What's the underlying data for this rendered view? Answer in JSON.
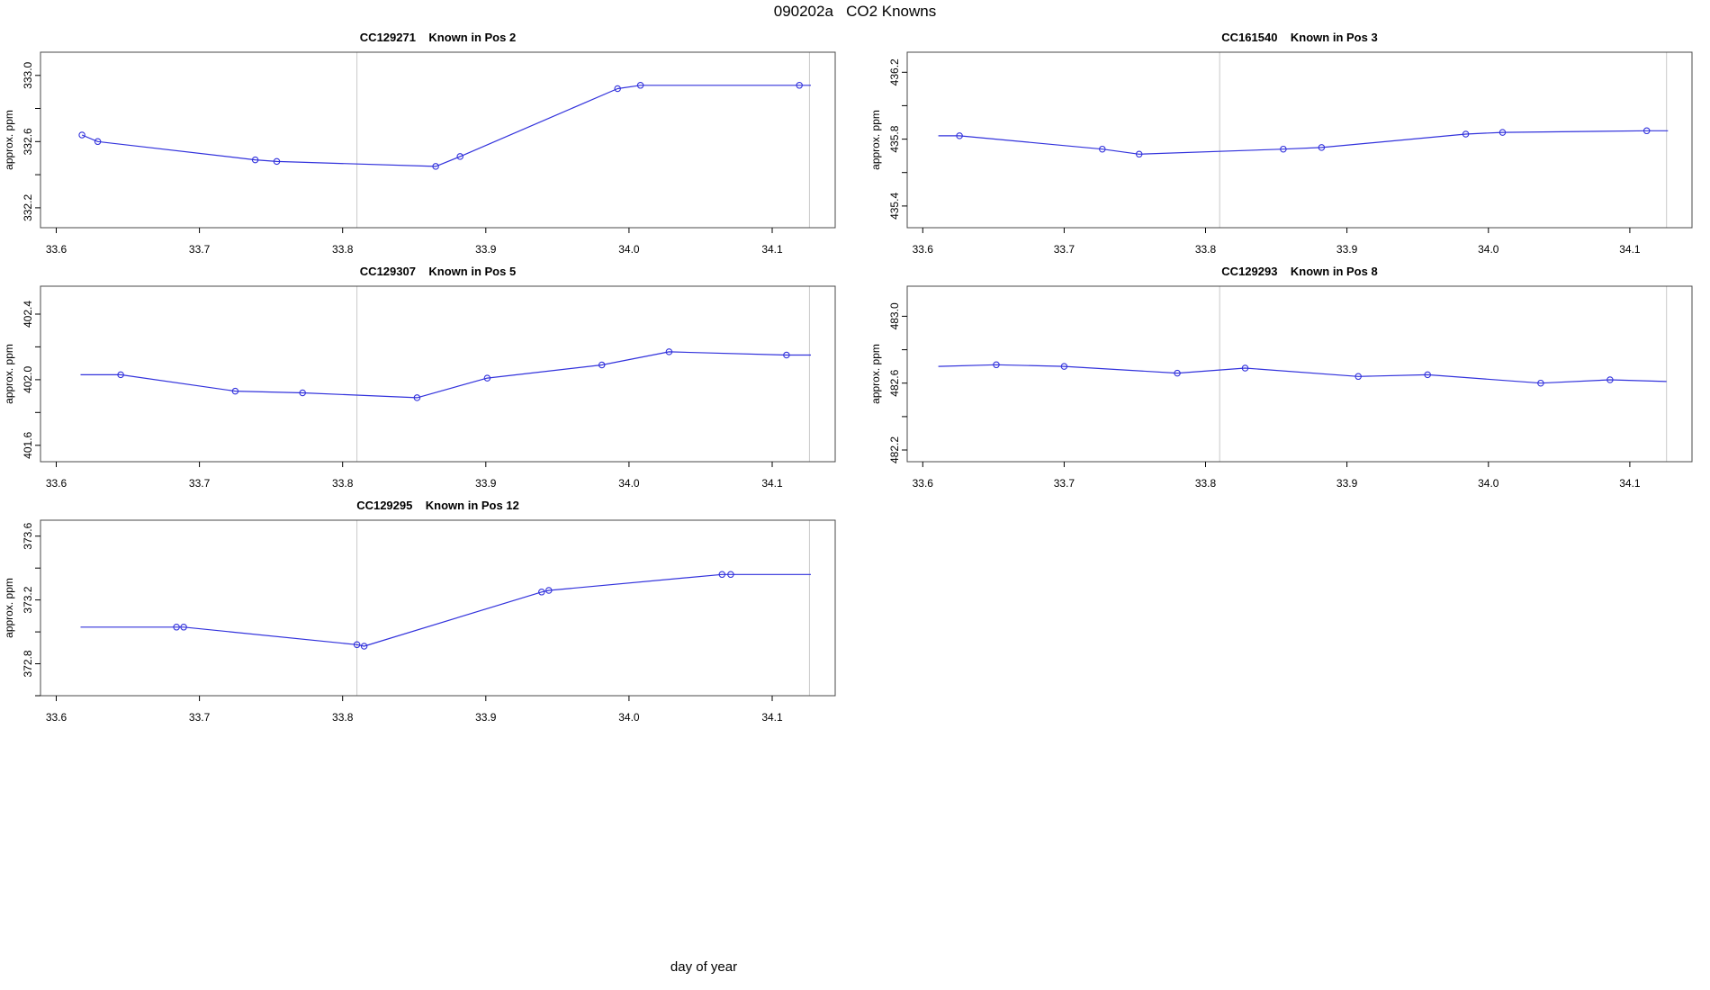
{
  "title": "090202a   CO2 Knowns",
  "xlabel": "day of year",
  "colors": {
    "line": "#3232dc",
    "marker": "#3232dc",
    "ref_line": "#c9c9c9",
    "box": "#4a4a4a",
    "tick": "#000000",
    "text": "#000000",
    "background": "#ffffff"
  },
  "chart_data": {
    "type": "line",
    "title": "090202a   CO2 Knowns",
    "xlabel": "day of year",
    "ylabel": "approx. ppm",
    "xlim": [
      33.589,
      34.144
    ],
    "xticks": [
      {
        "v": 33.6,
        "label": "33.6"
      },
      {
        "v": 33.7,
        "label": "33.7"
      },
      {
        "v": 33.8,
        "label": "33.8"
      },
      {
        "v": 33.9,
        "label": "33.9"
      },
      {
        "v": 34.0,
        "label": "34.0"
      },
      {
        "v": 34.1,
        "label": "34.1"
      }
    ],
    "ref_lines_x": [
      33.81,
      34.126
    ],
    "grid": false,
    "legend": "none",
    "marker_style": "open-circle",
    "panels": [
      {
        "title": "CC129271    Known in Pos 2",
        "col": 0,
        "row": 0,
        "ylim": [
          332.08,
          333.14
        ],
        "yticks": [
          {
            "v": 333.0,
            "label": "333.0"
          },
          {
            "v": 332.6,
            "label": "332.6"
          },
          {
            "v": 332.2,
            "label": "332.2"
          }
        ],
        "yticks_minor": [
          332.8,
          332.4
        ],
        "points": [
          {
            "x": 33.618,
            "y": 332.64,
            "marker": true
          },
          {
            "x": 33.629,
            "y": 332.6,
            "marker": true
          },
          {
            "x": 33.739,
            "y": 332.49,
            "marker": true
          },
          {
            "x": 33.754,
            "y": 332.48,
            "marker": true
          },
          {
            "x": 33.865,
            "y": 332.45,
            "marker": true
          },
          {
            "x": 33.882,
            "y": 332.51,
            "marker": true
          },
          {
            "x": 33.992,
            "y": 332.92,
            "marker": true
          },
          {
            "x": 34.008,
            "y": 332.94,
            "marker": true
          },
          {
            "x": 34.119,
            "y": 332.94,
            "marker": true
          },
          {
            "x": 34.127,
            "y": 332.94,
            "marker": false
          }
        ]
      },
      {
        "title": "CC161540    Known in Pos 3",
        "col": 1,
        "row": 0,
        "ylim": [
          435.27,
          436.32
        ],
        "yticks": [
          {
            "v": 436.2,
            "label": "436.2"
          },
          {
            "v": 435.8,
            "label": "435.8"
          },
          {
            "v": 435.4,
            "label": "435.4"
          }
        ],
        "yticks_minor": [
          436.0,
          435.6
        ],
        "points": [
          {
            "x": 33.611,
            "y": 435.82,
            "marker": false
          },
          {
            "x": 33.626,
            "y": 435.82,
            "marker": true
          },
          {
            "x": 33.727,
            "y": 435.74,
            "marker": true
          },
          {
            "x": 33.753,
            "y": 435.71,
            "marker": true
          },
          {
            "x": 33.855,
            "y": 435.74,
            "marker": true
          },
          {
            "x": 33.882,
            "y": 435.75,
            "marker": true
          },
          {
            "x": 33.984,
            "y": 435.83,
            "marker": true
          },
          {
            "x": 34.01,
            "y": 435.84,
            "marker": true
          },
          {
            "x": 34.112,
            "y": 435.85,
            "marker": true
          },
          {
            "x": 34.127,
            "y": 435.85,
            "marker": false
          }
        ]
      },
      {
        "title": "CC129307    Known in Pos 5",
        "col": 0,
        "row": 1,
        "ylim": [
          401.5,
          402.57
        ],
        "yticks": [
          {
            "v": 402.4,
            "label": "402.4"
          },
          {
            "v": 402.0,
            "label": "402.0"
          },
          {
            "v": 401.6,
            "label": "401.6"
          }
        ],
        "yticks_minor": [
          402.2,
          401.8
        ],
        "points": [
          {
            "x": 33.617,
            "y": 402.03,
            "marker": false
          },
          {
            "x": 33.645,
            "y": 402.03,
            "marker": true
          },
          {
            "x": 33.725,
            "y": 401.93,
            "marker": true
          },
          {
            "x": 33.772,
            "y": 401.92,
            "marker": true
          },
          {
            "x": 33.852,
            "y": 401.89,
            "marker": true
          },
          {
            "x": 33.901,
            "y": 402.01,
            "marker": true
          },
          {
            "x": 33.981,
            "y": 402.09,
            "marker": true
          },
          {
            "x": 34.028,
            "y": 402.17,
            "marker": true
          },
          {
            "x": 34.11,
            "y": 402.15,
            "marker": true
          },
          {
            "x": 34.127,
            "y": 402.15,
            "marker": false
          }
        ]
      },
      {
        "title": "CC129293    Known in Pos 8",
        "col": 1,
        "row": 1,
        "ylim": [
          482.13,
          483.18
        ],
        "yticks": [
          {
            "v": 483.0,
            "label": "483.0"
          },
          {
            "v": 482.6,
            "label": "482.6"
          },
          {
            "v": 482.2,
            "label": "482.2"
          }
        ],
        "yticks_minor": [
          482.8,
          482.4
        ],
        "points": [
          {
            "x": 33.611,
            "y": 482.7,
            "marker": false
          },
          {
            "x": 33.652,
            "y": 482.71,
            "marker": true
          },
          {
            "x": 33.7,
            "y": 482.7,
            "marker": true
          },
          {
            "x": 33.78,
            "y": 482.66,
            "marker": true
          },
          {
            "x": 33.828,
            "y": 482.69,
            "marker": true
          },
          {
            "x": 33.908,
            "y": 482.64,
            "marker": true
          },
          {
            "x": 33.957,
            "y": 482.65,
            "marker": true
          },
          {
            "x": 34.037,
            "y": 482.6,
            "marker": true
          },
          {
            "x": 34.086,
            "y": 482.62,
            "marker": true
          },
          {
            "x": 34.126,
            "y": 482.61,
            "marker": false
          }
        ]
      },
      {
        "title": "CC129295    Known in Pos 12",
        "col": 0,
        "row": 2,
        "ylim": [
          372.6,
          373.7
        ],
        "yticks": [
          {
            "v": 373.6,
            "label": "373.6"
          },
          {
            "v": 373.2,
            "label": "373.2"
          },
          {
            "v": 372.8,
            "label": "372.8"
          }
        ],
        "yticks_minor": [
          373.4,
          373.0,
          372.6
        ],
        "points": [
          {
            "x": 33.617,
            "y": 373.03,
            "marker": false
          },
          {
            "x": 33.684,
            "y": 373.03,
            "marker": true
          },
          {
            "x": 33.689,
            "y": 373.03,
            "marker": true
          },
          {
            "x": 33.81,
            "y": 372.92,
            "marker": true
          },
          {
            "x": 33.815,
            "y": 372.91,
            "marker": true
          },
          {
            "x": 33.939,
            "y": 373.25,
            "marker": true
          },
          {
            "x": 33.944,
            "y": 373.26,
            "marker": true
          },
          {
            "x": 34.065,
            "y": 373.36,
            "marker": true
          },
          {
            "x": 34.071,
            "y": 373.36,
            "marker": true
          },
          {
            "x": 34.127,
            "y": 373.36,
            "marker": false
          }
        ]
      }
    ]
  }
}
